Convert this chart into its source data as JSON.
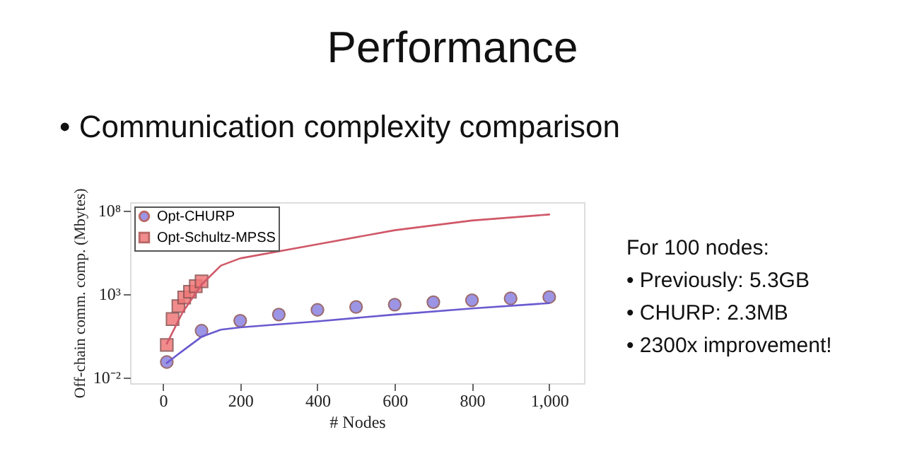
{
  "chart_data": {
    "type": "scatter",
    "title": "Performance",
    "subtitle": "• Communication complexity comparison",
    "xlabel": "# Nodes",
    "ylabel": "Off-chain comm. comp. (Mbytes)",
    "annotations": [
      "For 100 nodes:",
      "• Previously: 5.3GB",
      "• CHURP: 2.3MB",
      "• 2300x improvement!"
    ],
    "log": "y",
    "xlim": [
      -85,
      1090
    ],
    "xticks": [
      0,
      200,
      400,
      600,
      800,
      {
        "value": 1000,
        "label": "1,000"
      }
    ],
    "ylim": [
      0.0043,
      300000000
    ],
    "yticks": [
      {
        "value": 0.01,
        "label": "10⁻²"
      },
      {
        "value": 1000,
        "label": "10³"
      },
      {
        "value": 100000000,
        "label": "10⁸"
      }
    ],
    "grid": false,
    "legend": "top left",
    "series": [
      {
        "name": "Opt-CHURP",
        "marker": "circle",
        "color": "#8b82e0",
        "x": [
          10,
          100,
          200,
          300,
          400,
          500,
          600,
          700,
          800,
          900,
          1000
        ],
        "values": [
          0.08,
          6,
          24,
          56,
          107,
          160,
          220,
          310,
          400,
          520,
          630
        ]
      },
      {
        "name": "Opt-Schultz-MPSS",
        "marker": "square",
        "color": "#f07878",
        "x": [
          10,
          25,
          40,
          55,
          70,
          85,
          100
        ],
        "values": [
          0.85,
          30,
          180,
          590,
          1300,
          2800,
          5500
        ]
      },
      {
        "type": "line",
        "marker": "none",
        "color": "#6a5ad0",
        "x": [
          10,
          50,
          100,
          150,
          200,
          400,
          600,
          800,
          1000
        ],
        "values": [
          0.07,
          0.36,
          2.6,
          7,
          9.5,
          22,
          56,
          130,
          270
        ]
      },
      {
        "type": "line",
        "marker": "none",
        "color": "#d05868",
        "x": [
          10,
          50,
          100,
          150,
          200,
          400,
          600,
          800,
          1000
        ],
        "values": [
          1.0,
          70,
          3500,
          48000,
          130000,
          900000,
          6300000,
          24000000,
          55000000
        ]
      }
    ]
  }
}
